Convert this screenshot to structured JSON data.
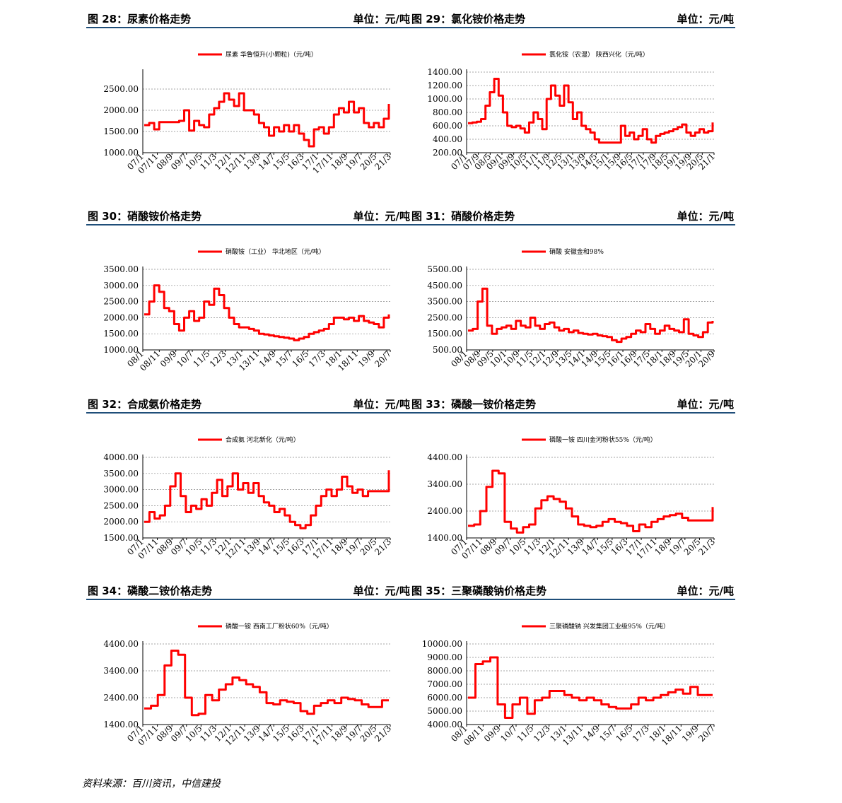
{
  "footer": {
    "source": "资料来源：百川资讯，中信建投"
  },
  "charts": [
    {
      "title": "图 28：尿素价格走势",
      "unit": "单位：元/吨",
      "chart_data": {
        "type": "line",
        "series_name": "尿素 华鲁恒升(小颗粒)（元/吨）",
        "yticks": [
          "1000.00",
          "1500.00",
          "2000.00",
          "2500.00"
        ],
        "ylim": [
          1000,
          2900
        ],
        "xticks": [
          "07/1",
          "07/11",
          "08/9",
          "09/7",
          "10/5",
          "11/3",
          "12/1",
          "12/11",
          "13/9",
          "14/7",
          "15/5",
          "16/3",
          "17/1",
          "17/11",
          "18/9",
          "19/7",
          "20/5",
          "21/3"
        ],
        "y": [
          1650,
          1700,
          1550,
          1720,
          1720,
          1720,
          1720,
          1750,
          2000,
          1520,
          1750,
          1650,
          1600,
          1900,
          2050,
          2200,
          2400,
          2250,
          2100,
          2400,
          2000,
          2000,
          1900,
          1700,
          1600,
          1400,
          1600,
          1500,
          1650,
          1500,
          1650,
          1450,
          1300,
          1150,
          1550,
          1600,
          1450,
          1600,
          1900,
          2050,
          1950,
          2200,
          1950,
          2050,
          1700,
          1600,
          1700,
          1600,
          1800,
          2150
        ]
      }
    },
    {
      "title": "图 29：氯化铵价格走势",
      "unit": "单位：元/吨",
      "chart_data": {
        "type": "line",
        "series_name": "氯化铵（农湿） 陕西兴化（元/吨）",
        "yticks": [
          "200.00",
          "400.00",
          "600.00",
          "800.00",
          "1000.00",
          "1200.00",
          "1400.00"
        ],
        "ylim": [
          200,
          1400
        ],
        "xticks": [
          "07/1",
          "07/9",
          "08/5",
          "09/1",
          "09/9",
          "10/5",
          "11/1",
          "11/9",
          "12/5",
          "13/1",
          "13/9",
          "14/5",
          "15/1",
          "15/9",
          "16/5",
          "17/1",
          "17/9",
          "18/5",
          "19/1",
          "19/9",
          "20/5",
          "21/1"
        ],
        "y": [
          640,
          650,
          660,
          700,
          900,
          1100,
          1300,
          1050,
          800,
          600,
          580,
          600,
          560,
          500,
          650,
          800,
          700,
          550,
          1000,
          1200,
          1050,
          900,
          1200,
          950,
          700,
          800,
          600,
          550,
          500,
          400,
          350,
          350,
          350,
          350,
          350,
          600,
          450,
          500,
          400,
          450,
          550,
          400,
          350,
          450,
          480,
          500,
          520,
          550,
          580,
          620,
          500,
          450,
          500,
          550,
          500,
          520,
          650
        ]
      }
    },
    {
      "title": "图 30：硝酸铵价格走势",
      "unit": "单位：元/吨",
      "chart_data": {
        "type": "line",
        "series_name": "硝酸铵（工业） 华北地区（元/吨）",
        "yticks": [
          "1000.00",
          "1500.00",
          "2000.00",
          "2500.00",
          "3000.00",
          "3500.00"
        ],
        "ylim": [
          1000,
          3500
        ],
        "xticks": [
          "08/1",
          "08/11",
          "09/9",
          "10/7",
          "11/5",
          "12/3",
          "13/1",
          "13/11",
          "14/9",
          "15/7",
          "16/5",
          "17/3",
          "18/1",
          "18/11",
          "19/9",
          "20/7"
        ],
        "y": [
          2100,
          2500,
          3000,
          2800,
          2300,
          2200,
          1800,
          1600,
          2000,
          2200,
          1900,
          2000,
          2500,
          2400,
          2900,
          2700,
          2300,
          2000,
          1800,
          1700,
          1700,
          1650,
          1600,
          1500,
          1480,
          1450,
          1420,
          1400,
          1380,
          1350,
          1300,
          1350,
          1400,
          1500,
          1550,
          1600,
          1650,
          1800,
          2000,
          2000,
          1950,
          2000,
          1900,
          2050,
          1900,
          1850,
          1800,
          1700,
          2000,
          2100
        ]
      }
    },
    {
      "title": "图 31：硝酸价格走势",
      "unit": "单位：元/吨",
      "chart_data": {
        "type": "line",
        "series_name": "硝酸 安徽金和98%",
        "yticks": [
          "500.00",
          "1500.00",
          "2500.00",
          "3500.00",
          "4500.00",
          "5500.00"
        ],
        "ylim": [
          500,
          5500
        ],
        "xticks": [
          "08/1",
          "08/9",
          "09/5",
          "10/1",
          "10/9",
          "11/5",
          "12/1",
          "12/9",
          "13/5",
          "14/1",
          "14/9",
          "15/5",
          "16/1",
          "16/9",
          "17/5",
          "18/1",
          "18/9",
          "19/5",
          "20/1",
          "20/9"
        ],
        "y": [
          1700,
          1800,
          3500,
          4300,
          2000,
          1500,
          1800,
          1900,
          2000,
          1800,
          2300,
          2000,
          1900,
          2500,
          2000,
          1800,
          2100,
          2200,
          1900,
          1700,
          1800,
          1600,
          1700,
          1550,
          1500,
          1450,
          1500,
          1400,
          1350,
          1300,
          1100,
          1000,
          1200,
          1300,
          1500,
          1700,
          1600,
          2100,
          1800,
          1500,
          1700,
          2000,
          1800,
          1700,
          1600,
          2400,
          1500,
          1400,
          1300,
          1600,
          2200,
          2300
        ]
      }
    },
    {
      "title": "图 32：合成氨价格走势",
      "unit": "单位：元/吨",
      "chart_data": {
        "type": "line",
        "series_name": "合成氨 河北新化（元/吨）",
        "yticks": [
          "1500.00",
          "2000.00",
          "2500.00",
          "3000.00",
          "3500.00",
          "4000.00"
        ],
        "ylim": [
          1500,
          4000
        ],
        "xticks": [
          "07/1",
          "07/11",
          "08/9",
          "09/7",
          "10/5",
          "11/3",
          "12/1",
          "12/11",
          "13/9",
          "14/7",
          "15/5",
          "16/3",
          "17/1",
          "17/11",
          "18/9",
          "19/7",
          "20/5",
          "21/3"
        ],
        "y": [
          2000,
          2300,
          2100,
          2200,
          2500,
          3100,
          3500,
          2800,
          2300,
          2500,
          2400,
          2700,
          2500,
          2900,
          3300,
          2800,
          3100,
          3500,
          3000,
          3200,
          2900,
          3200,
          2800,
          2600,
          2500,
          2300,
          2400,
          2200,
          2000,
          1900,
          1800,
          1900,
          2200,
          2500,
          2800,
          3000,
          2800,
          3000,
          3400,
          3100,
          2900,
          3000,
          2800,
          2950,
          2950,
          2950,
          2950,
          3600
        ]
      }
    },
    {
      "title": "图 33：磷酸一铵价格走势",
      "unit": "单位：元/吨",
      "chart_data": {
        "type": "line",
        "series_name": "磷酸一铵 四川金河粉状55%（元/吨）",
        "yticks": [
          "1400.00",
          "2400.00",
          "3400.00",
          "4400.00"
        ],
        "ylim": [
          1400,
          4400
        ],
        "xticks": [
          "07/1",
          "07/11",
          "08/9",
          "09/7",
          "10/5",
          "11/3",
          "12/1",
          "12/11",
          "13/9",
          "14/7",
          "15/5",
          "16/3",
          "17/1",
          "17/11",
          "18/9",
          "19/7",
          "20/5",
          "21/3"
        ],
        "y": [
          1850,
          1900,
          2400,
          3300,
          3900,
          3800,
          2000,
          1750,
          1600,
          1800,
          1900,
          2500,
          2800,
          2950,
          2850,
          2750,
          2500,
          2200,
          1900,
          1850,
          1800,
          1850,
          2000,
          2100,
          2000,
          1950,
          1850,
          1650,
          1900,
          1800,
          2000,
          2100,
          2200,
          2250,
          2300,
          2150,
          2050,
          2050,
          2050,
          2050,
          2550
        ]
      }
    },
    {
      "title": "图 34：磷酸二铵价格走势",
      "unit": "单位：元/吨",
      "chart_data": {
        "type": "line",
        "series_name": "磷酸一铵 西南工厂粉状60%（元/吨）",
        "yticks": [
          "1400.00",
          "2400.00",
          "3400.00",
          "4400.00"
        ],
        "ylim": [
          1400,
          4400
        ],
        "xticks": [
          "07/1",
          "07/11",
          "08/9",
          "09/7",
          "10/5",
          "11/3",
          "12/1",
          "12/11",
          "13/9",
          "14/7",
          "15/5",
          "16/3",
          "17/1",
          "17/11",
          "18/9",
          "19/7",
          "20/5",
          "21/3"
        ],
        "y": [
          2000,
          2100,
          2500,
          3600,
          4150,
          4000,
          2400,
          1750,
          1800,
          2500,
          2300,
          2700,
          2900,
          3150,
          3050,
          2900,
          2800,
          2600,
          2200,
          2150,
          2300,
          2250,
          2200,
          1900,
          1800,
          2100,
          2200,
          2300,
          2200,
          2400,
          2350,
          2300,
          2150,
          2050,
          2050,
          2300,
          2300
        ]
      }
    },
    {
      "title": "图 35：三聚磷酸钠价格走势",
      "unit": "单位：元/吨",
      "chart_data": {
        "type": "line",
        "series_name": "三聚磷酸钠 兴发集团工业级95%（元/吨）",
        "yticks": [
          "4000.00",
          "5000.00",
          "6000.00",
          "7000.00",
          "8000.00",
          "9000.00",
          "10000.00"
        ],
        "ylim": [
          4000,
          10000
        ],
        "xticks": [
          "08/1",
          "08/11",
          "09/9",
          "10/7",
          "11/5",
          "12/3",
          "13/1",
          "13/11",
          "14/9",
          "15/7",
          "16/5",
          "17/3",
          "18/1",
          "18/11",
          "19/9",
          "20/7"
        ],
        "y": [
          6000,
          8500,
          8700,
          9000,
          5500,
          4500,
          5500,
          6000,
          4800,
          5800,
          6000,
          6500,
          6500,
          6200,
          6000,
          5800,
          6000,
          5800,
          5500,
          5300,
          5200,
          5200,
          5500,
          6000,
          5800,
          6000,
          6200,
          6400,
          6600,
          6300,
          6800,
          6200,
          6200,
          6200
        ]
      }
    }
  ]
}
